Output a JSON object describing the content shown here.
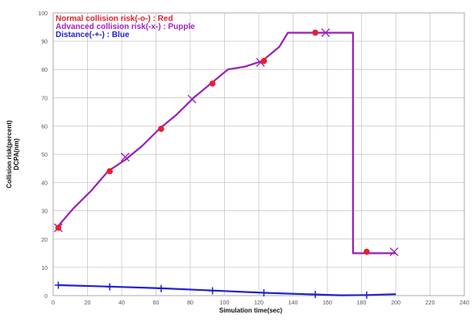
{
  "chart_data": {
    "type": "line",
    "xlabel": "Simulation time(sec)",
    "ylabel_lines": [
      "Collision risk(percent)",
      "DCPA(nm)"
    ],
    "xlim": [
      0,
      240
    ],
    "ylim": [
      0,
      100
    ],
    "xticks": [
      0,
      20,
      40,
      60,
      80,
      100,
      120,
      140,
      160,
      180,
      200,
      220,
      240
    ],
    "yticks": [
      0,
      10,
      20,
      30,
      40,
      50,
      60,
      70,
      80,
      90,
      100
    ],
    "grid": true,
    "legend_position": "top-left",
    "legend": [
      {
        "label": "Normal collision risk(-o-) : Red",
        "color": "#e8202a"
      },
      {
        "label": "Advanced collision risk(-x-) : Pupple",
        "color": "#a21fc4"
      },
      {
        "label": "Distance(-+-) : Blue",
        "color": "#2222d0"
      }
    ],
    "series": [
      {
        "label_ref": 1,
        "color": "#9a1fb8",
        "marker": "x",
        "points": [
          [
            2,
            24
          ],
          [
            12,
            31
          ],
          [
            22,
            37
          ],
          [
            32,
            44
          ],
          [
            42,
            48
          ],
          [
            52,
            53
          ],
          [
            62,
            59
          ],
          [
            72,
            64
          ],
          [
            82,
            70
          ],
          [
            92,
            75
          ],
          [
            102,
            80
          ],
          [
            112,
            81
          ],
          [
            122,
            83
          ],
          [
            132,
            88
          ],
          [
            137,
            93
          ],
          [
            175,
            93
          ],
          [
            175,
            15
          ],
          [
            185,
            15
          ],
          [
            200,
            15
          ]
        ],
        "marker_points": [
          [
            3,
            24
          ],
          [
            42,
            49
          ],
          [
            81,
            69.5
          ],
          [
            121,
            82.5
          ],
          [
            159,
            93
          ],
          [
            199,
            15.5
          ]
        ]
      },
      {
        "label_ref": 0,
        "color": "#e8202a",
        "marker": "o",
        "marker_points": [
          [
            3,
            24
          ],
          [
            33,
            44
          ],
          [
            63,
            59
          ],
          [
            93,
            75
          ],
          [
            123,
            83
          ],
          [
            153,
            93
          ],
          [
            183,
            15.5
          ]
        ]
      },
      {
        "label_ref": 2,
        "color": "#2222d0",
        "marker": "+",
        "points": [
          [
            3,
            3.7
          ],
          [
            33,
            3.2
          ],
          [
            63,
            2.6
          ],
          [
            93,
            1.8
          ],
          [
            123,
            1.0
          ],
          [
            153,
            0.4
          ],
          [
            168,
            0.1
          ],
          [
            183,
            0.2
          ],
          [
            200,
            0.5
          ]
        ],
        "marker_points": [
          [
            3,
            3.7
          ],
          [
            33,
            3.1
          ],
          [
            63,
            2.5
          ],
          [
            93,
            1.7
          ],
          [
            123,
            1.0
          ],
          [
            153,
            0.4
          ],
          [
            183,
            0.2
          ]
        ]
      }
    ]
  }
}
